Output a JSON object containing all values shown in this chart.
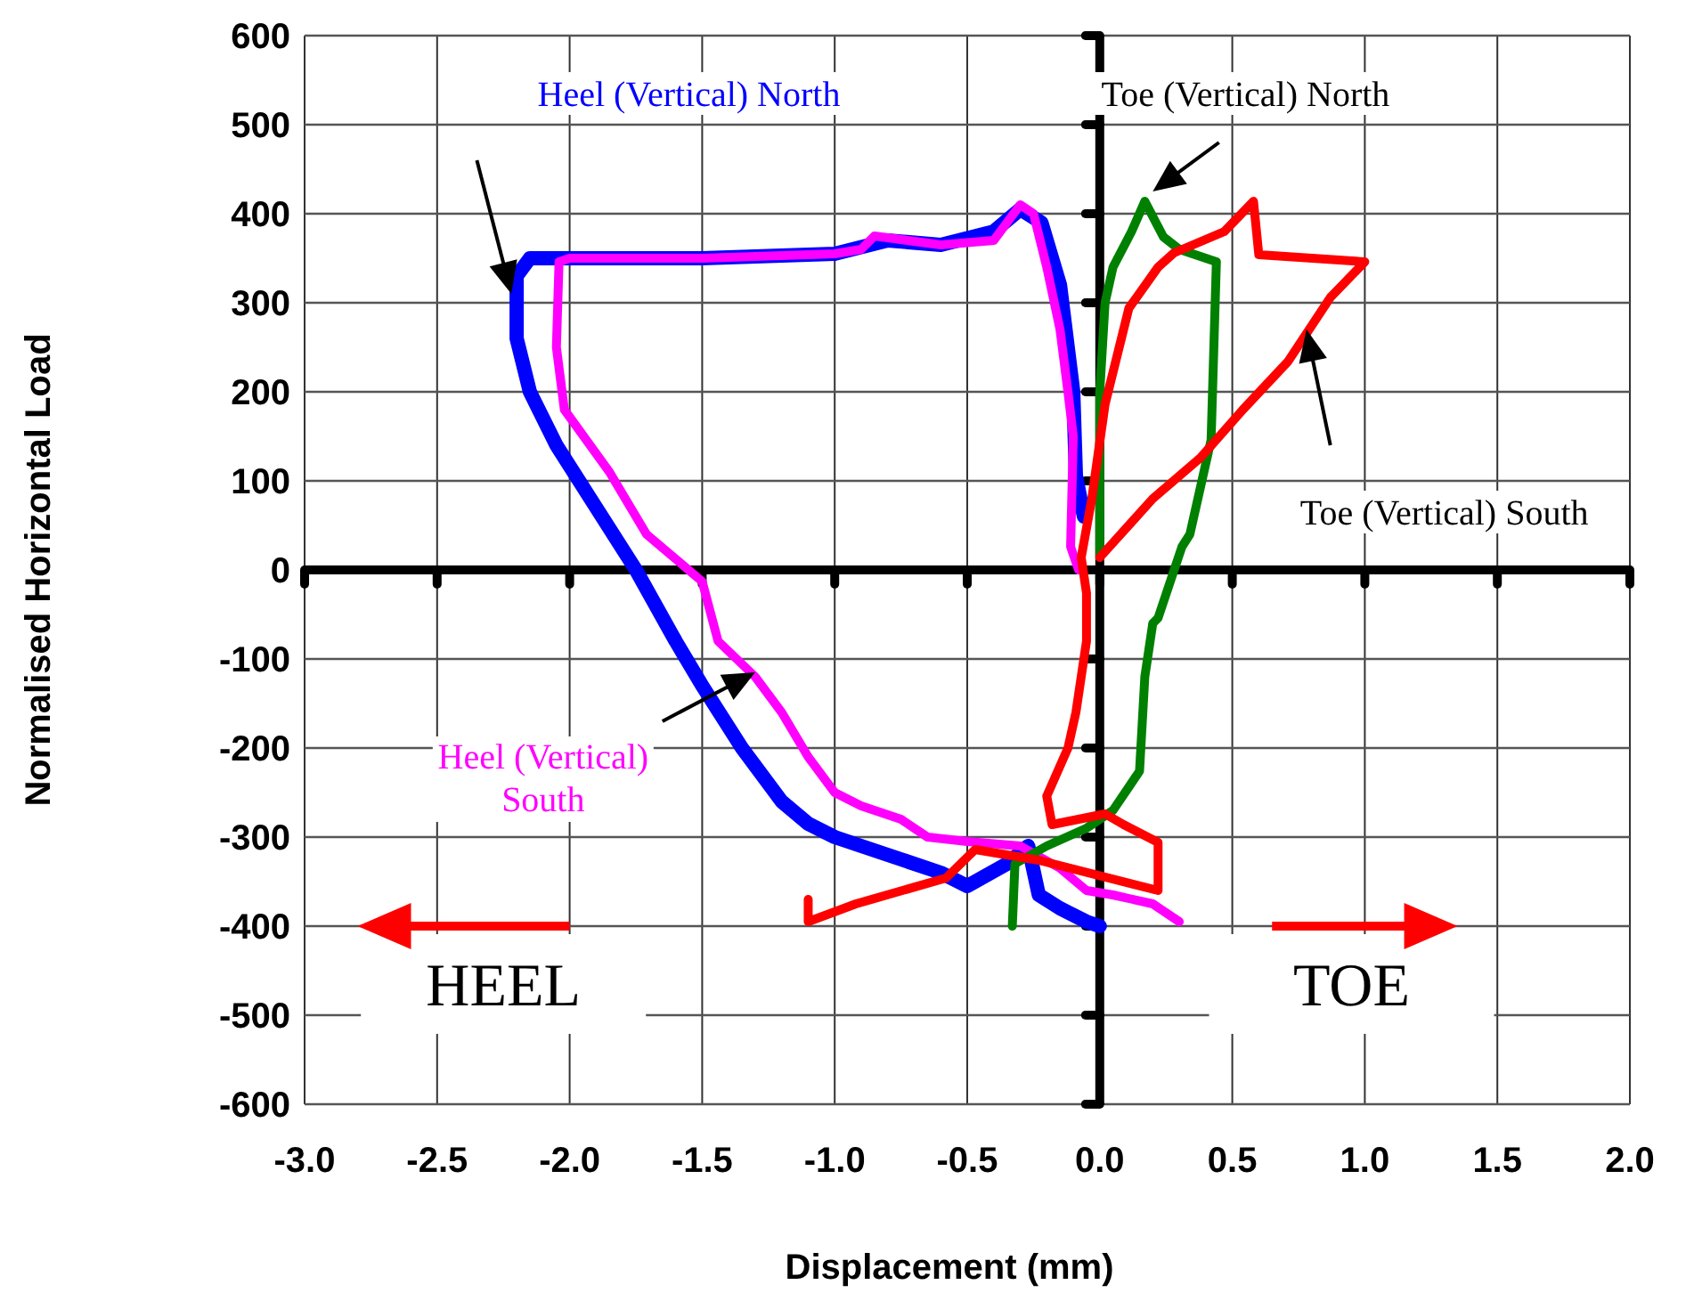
{
  "chart_data": {
    "type": "line",
    "xlabel": "Displacement (mm)",
    "ylabel": "Normalised Horizontal Load",
    "xlim": [
      -3,
      2
    ],
    "ylim": [
      -600,
      600
    ],
    "xticks": [
      {
        "value": -3,
        "label": "-3.0"
      },
      {
        "value": -2.5,
        "label": "-2.5"
      },
      {
        "value": -2,
        "label": "-2.0"
      },
      {
        "value": -1.5,
        "label": "-1.5"
      },
      {
        "value": -1,
        "label": "-1.0"
      },
      {
        "value": -0.5,
        "label": "-0.5"
      },
      {
        "value": 0,
        "label": "0.0"
      },
      {
        "value": 0.5,
        "label": "0.5"
      },
      {
        "value": 1,
        "label": "1.0"
      },
      {
        "value": 1.5,
        "label": "1.5"
      },
      {
        "value": 2,
        "label": "2.0"
      }
    ],
    "yticks": [
      -600,
      -500,
      -400,
      -300,
      -200,
      -100,
      0,
      100,
      200,
      300,
      400,
      500,
      600
    ],
    "grid": true,
    "legend": false,
    "marker": "none",
    "line_style": "solid",
    "series": [
      {
        "name": "Heel (Vertical) North",
        "color": "#0000ff",
        "x": [
          0,
          -0.05,
          -0.15,
          -0.23,
          -0.27,
          -0.35,
          -0.5,
          -0.6,
          -0.8,
          -1.0,
          -1.1,
          -1.2,
          -1.35,
          -1.5,
          -1.6,
          -1.75,
          -1.9,
          -2.05,
          -2.15,
          -2.2,
          -2.2,
          -2.15,
          -2.0,
          -1.5,
          -1.0,
          -0.8,
          -0.6,
          -0.4,
          -0.3,
          -0.22,
          -0.15,
          -0.1,
          -0.09,
          -0.06
        ],
        "values": [
          -400,
          -395,
          -380,
          -365,
          -310,
          -330,
          -355,
          -340,
          -320,
          -300,
          -285,
          -260,
          -200,
          -130,
          -80,
          0,
          70,
          140,
          200,
          260,
          330,
          350,
          350,
          350,
          355,
          370,
          365,
          380,
          405,
          390,
          320,
          200,
          106,
          60
        ]
      },
      {
        "name": "Heel (Vertical) South",
        "color": "#ff00ff",
        "x": [
          0.3,
          0.2,
          0.05,
          -0.05,
          -0.15,
          -0.3,
          -0.5,
          -0.65,
          -0.75,
          -0.9,
          -1.0,
          -1.1,
          -1.2,
          -1.3,
          -1.44,
          -1.5,
          -1.71,
          -1.85,
          -2.02,
          -2.05,
          -2.04,
          -2.0,
          -1.5,
          -1.0,
          -0.9,
          -0.85,
          -0.6,
          -0.4,
          -0.35,
          -0.3,
          -0.25,
          -0.2,
          -0.15,
          -0.12,
          -0.1,
          -0.11,
          -0.08
        ],
        "values": [
          -395,
          -375,
          -365,
          -360,
          -335,
          -310,
          -305,
          -300,
          -280,
          -265,
          -250,
          -210,
          -160,
          -120,
          -80,
          -13,
          40,
          110,
          180,
          250,
          346,
          350,
          350,
          355,
          360,
          375,
          365,
          370,
          390,
          410,
          400,
          340,
          270,
          200,
          150,
          26,
          0
        ]
      },
      {
        "name": "Toe (Vertical) North",
        "color": "#008000",
        "x": [
          -0.33,
          -0.32,
          -0.2,
          -0.05,
          0.05,
          0.15,
          0.17,
          0.2,
          0.22,
          0.31,
          0.34,
          0.42,
          0.44,
          0.3,
          0.24,
          0.17,
          0.12,
          0.05,
          0.02,
          0,
          0,
          0
        ],
        "values": [
          -400,
          -330,
          -310,
          -290,
          -270,
          -226,
          -120,
          -60,
          -54,
          26,
          40,
          146,
          346,
          360,
          374,
          414,
          380,
          340,
          300,
          200,
          100,
          14
        ]
      },
      {
        "name": "Toe (Vertical) South",
        "color": "#ff0000",
        "x": [
          -1.1,
          -1.1,
          -0.92,
          -0.58,
          -0.47,
          -0.23,
          0.22,
          0.22,
          0.09,
          0.02,
          -0.18,
          -0.2,
          -0.12,
          -0.09,
          -0.05,
          -0.05,
          -0.07,
          -0.03,
          0.02,
          0.11,
          0.22,
          0.28,
          0.47,
          0.58,
          0.6,
          1.0,
          0.87,
          0.71,
          0.54,
          0.38,
          0.2,
          0
        ],
        "values": [
          -370,
          -395,
          -375,
          -346,
          -314,
          -326,
          -360,
          -306,
          -286,
          -274,
          -286,
          -254,
          -200,
          -160,
          -80,
          -26,
          14,
          80,
          186,
          294,
          340,
          356,
          380,
          414,
          354,
          346,
          306,
          234,
          180,
          126,
          80,
          14
        ]
      }
    ],
    "annotations": [
      "HEEL",
      "TOE"
    ]
  }
}
